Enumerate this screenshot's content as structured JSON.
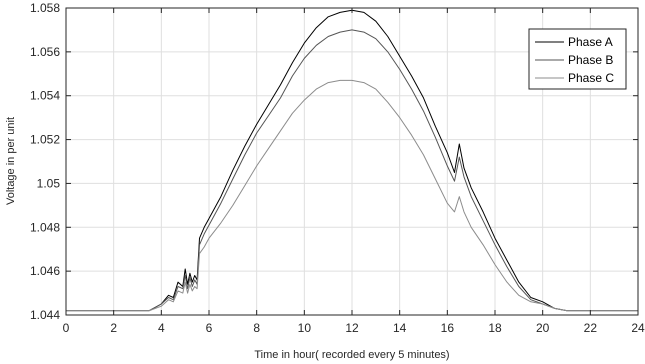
{
  "chart_data": {
    "type": "line",
    "title": "",
    "xlabel": "Time in hour( recorded every 5 minutes)",
    "ylabel": "Voltage in per unit",
    "xlim": [
      0,
      24
    ],
    "ylim": [
      1.044,
      1.058
    ],
    "xticks": [
      0,
      2,
      4,
      6,
      8,
      10,
      12,
      14,
      16,
      18,
      20,
      22,
      24
    ],
    "xtick_labels": [
      "0",
      "2",
      "4",
      "6",
      "8",
      "10",
      "12",
      "14",
      "16",
      "18",
      "20",
      "22",
      "24"
    ],
    "yticks": [
      1.044,
      1.046,
      1.048,
      1.05,
      1.052,
      1.054,
      1.056,
      1.058
    ],
    "ytick_labels": [
      "1.044",
      "1.046",
      "1.048",
      "1.05",
      "1.052",
      "1.054",
      "1.056",
      "1.058"
    ],
    "grid": true,
    "legend_position": "top-right",
    "series": [
      {
        "name": "Phase A",
        "color": "#000000",
        "x": [
          0,
          3.5,
          4.0,
          4.3,
          4.5,
          4.7,
          4.9,
          5.0,
          5.1,
          5.2,
          5.3,
          5.4,
          5.5,
          5.6,
          5.8,
          6.0,
          6.5,
          7.0,
          7.5,
          8.0,
          8.5,
          9.0,
          9.5,
          10.0,
          10.5,
          11.0,
          11.5,
          12.0,
          12.5,
          13.0,
          13.5,
          14.0,
          14.5,
          15.0,
          15.5,
          16.0,
          16.3,
          16.5,
          16.7,
          17.0,
          17.5,
          18.0,
          18.5,
          19.0,
          19.5,
          20.0,
          20.5,
          21.0,
          24
        ],
        "y": [
          1.0442,
          1.0442,
          1.0445,
          1.0449,
          1.0448,
          1.0455,
          1.0453,
          1.0461,
          1.0454,
          1.0459,
          1.0455,
          1.0458,
          1.0456,
          1.0475,
          1.048,
          1.0484,
          1.0494,
          1.0506,
          1.0517,
          1.0527,
          1.0536,
          1.0545,
          1.0555,
          1.0564,
          1.0571,
          1.0576,
          1.0578,
          1.0579,
          1.0578,
          1.0574,
          1.0567,
          1.0558,
          1.0549,
          1.0539,
          1.0526,
          1.0514,
          1.0505,
          1.0518,
          1.0507,
          1.0498,
          1.0487,
          1.0475,
          1.0465,
          1.0455,
          1.0448,
          1.0446,
          1.0443,
          1.0442,
          1.0442
        ]
      },
      {
        "name": "Phase B",
        "color": "#555555",
        "x": [
          0,
          3.5,
          4.0,
          4.3,
          4.5,
          4.7,
          4.9,
          5.0,
          5.1,
          5.2,
          5.3,
          5.4,
          5.5,
          5.6,
          5.8,
          6.0,
          6.5,
          7.0,
          7.5,
          8.0,
          8.5,
          9.0,
          9.5,
          10.0,
          10.5,
          11.0,
          11.5,
          12.0,
          12.5,
          13.0,
          13.5,
          14.0,
          14.5,
          15.0,
          15.5,
          16.0,
          16.3,
          16.5,
          16.7,
          17.0,
          17.5,
          18.0,
          18.5,
          19.0,
          19.5,
          20.0,
          20.5,
          21.0,
          24
        ],
        "y": [
          1.0442,
          1.0442,
          1.0445,
          1.0448,
          1.0447,
          1.0453,
          1.0452,
          1.0458,
          1.0452,
          1.0457,
          1.0453,
          1.0456,
          1.0454,
          1.0472,
          1.0477,
          1.0481,
          1.0491,
          1.0502,
          1.0513,
          1.0523,
          1.0531,
          1.0539,
          1.0549,
          1.0557,
          1.0563,
          1.0567,
          1.0569,
          1.057,
          1.0569,
          1.0566,
          1.056,
          1.0552,
          1.0543,
          1.0533,
          1.0521,
          1.0508,
          1.0501,
          1.0512,
          1.0503,
          1.0494,
          1.0483,
          1.0472,
          1.0462,
          1.0453,
          1.0447,
          1.0445,
          1.0443,
          1.0442,
          1.0442
        ]
      },
      {
        "name": "Phase C",
        "color": "#8c8c8c",
        "x": [
          0,
          3.5,
          4.0,
          4.3,
          4.5,
          4.7,
          4.9,
          5.0,
          5.1,
          5.2,
          5.3,
          5.4,
          5.5,
          5.6,
          5.8,
          6.0,
          6.5,
          7.0,
          7.5,
          8.0,
          8.5,
          9.0,
          9.5,
          10.0,
          10.5,
          11.0,
          11.5,
          12.0,
          12.5,
          13.0,
          13.5,
          14.0,
          14.5,
          15.0,
          15.5,
          16.0,
          16.3,
          16.5,
          16.7,
          17.0,
          17.5,
          18.0,
          18.5,
          19.0,
          19.5,
          20.0,
          20.5,
          21.0,
          24
        ],
        "y": [
          1.0442,
          1.0442,
          1.0444,
          1.0447,
          1.0446,
          1.0451,
          1.045,
          1.0455,
          1.045,
          1.0454,
          1.0451,
          1.0453,
          1.0452,
          1.0468,
          1.0471,
          1.0475,
          1.0482,
          1.049,
          1.0499,
          1.0508,
          1.0516,
          1.0524,
          1.0532,
          1.0538,
          1.0543,
          1.0546,
          1.0547,
          1.0547,
          1.0546,
          1.0543,
          1.0537,
          1.053,
          1.0522,
          1.0513,
          1.0502,
          1.0491,
          1.0487,
          1.0494,
          1.0487,
          1.048,
          1.0472,
          1.0463,
          1.0455,
          1.0449,
          1.0446,
          1.0445,
          1.0443,
          1.0442,
          1.0442
        ]
      }
    ]
  }
}
